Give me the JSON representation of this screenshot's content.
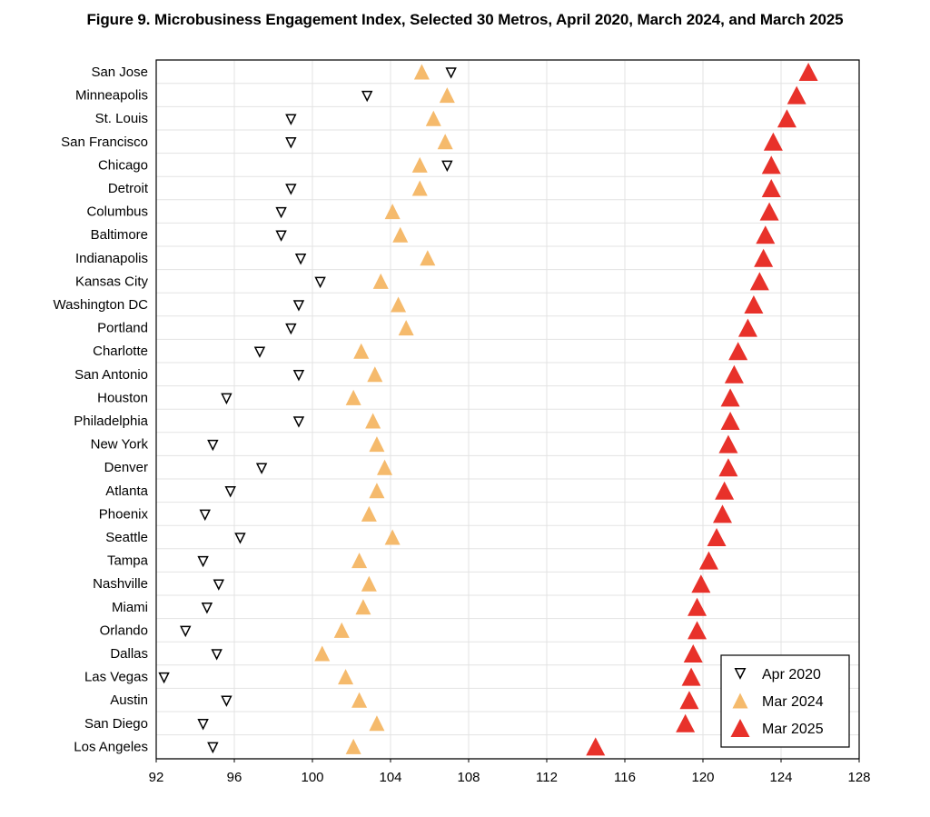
{
  "chart_data": {
    "type": "scatter",
    "title": "Figure 9. Microbusiness Engagement Index, Selected 30 Metros, April 2020, March 2024, and March 2025",
    "xlabel": "",
    "ylabel": "",
    "xlim": [
      92,
      128
    ],
    "xticks": [
      "92",
      "96",
      "100",
      "104",
      "108",
      "112",
      "116",
      "120",
      "124",
      "128"
    ],
    "xtick_values": [
      92,
      96,
      100,
      104,
      108,
      112,
      116,
      120,
      124,
      128
    ],
    "grid": true,
    "legend_position": "bottom-right",
    "categories": [
      "San Jose",
      "Minneapolis",
      "St. Louis",
      "San Francisco",
      "Chicago",
      "Detroit",
      "Columbus",
      "Baltimore",
      "Indianapolis",
      "Kansas City",
      "Washington DC",
      "Portland",
      "Charlotte",
      "San Antonio",
      "Houston",
      "Philadelphia",
      "New York",
      "Denver",
      "Atlanta",
      "Phoenix",
      "Seattle",
      "Tampa",
      "Nashville",
      "Miami",
      "Orlando",
      "Dallas",
      "Las Vegas",
      "Austin",
      "San Diego",
      "Los Angeles"
    ],
    "series": [
      {
        "name": "Apr 2020",
        "marker": "triangle-down-hollow",
        "color": "#000000",
        "values": [
          107.1,
          102.8,
          98.9,
          98.9,
          106.9,
          98.9,
          98.4,
          98.4,
          99.4,
          100.4,
          99.3,
          98.9,
          97.3,
          99.3,
          95.6,
          99.3,
          94.9,
          97.4,
          95.8,
          94.5,
          96.3,
          94.4,
          95.2,
          94.6,
          93.5,
          95.1,
          92.4,
          95.6,
          94.4,
          94.9
        ]
      },
      {
        "name": "Mar 2024",
        "marker": "triangle-up",
        "color": "#F5BA6C",
        "values": [
          105.6,
          106.9,
          106.2,
          106.8,
          105.5,
          105.5,
          104.1,
          104.5,
          105.9,
          103.5,
          104.4,
          104.8,
          102.5,
          103.2,
          102.1,
          103.1,
          103.3,
          103.7,
          103.3,
          102.9,
          104.1,
          102.4,
          102.9,
          102.6,
          101.5,
          100.5,
          101.7,
          102.4,
          103.3,
          102.1
        ]
      },
      {
        "name": "Mar 2025",
        "marker": "triangle-up",
        "color": "#E8312A",
        "values": [
          125.4,
          124.8,
          124.3,
          123.6,
          123.5,
          123.5,
          123.4,
          123.2,
          123.1,
          122.9,
          122.6,
          122.3,
          121.8,
          121.6,
          121.4,
          121.4,
          121.3,
          121.3,
          121.1,
          121.0,
          120.7,
          120.3,
          119.9,
          119.7,
          119.7,
          119.5,
          119.4,
          119.3,
          119.1,
          114.5
        ]
      }
    ]
  }
}
